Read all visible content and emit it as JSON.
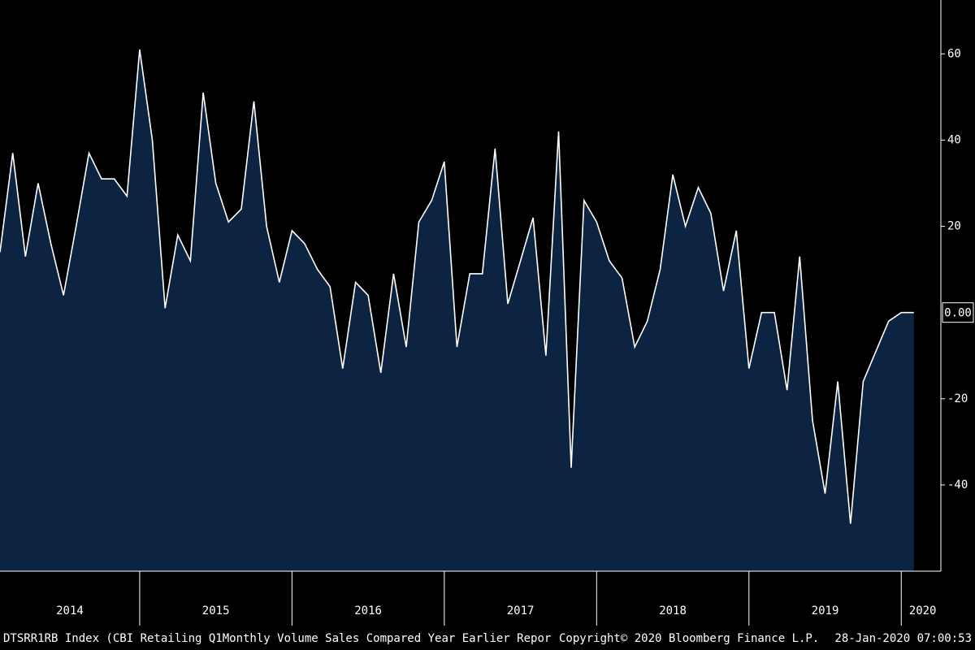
{
  "chart_data": {
    "type": "area",
    "x": [
      2014.083,
      2014.167,
      2014.25,
      2014.333,
      2014.417,
      2014.5,
      2014.583,
      2014.667,
      2014.75,
      2014.833,
      2014.917,
      2015,
      2015.083,
      2015.167,
      2015.25,
      2015.333,
      2015.417,
      2015.5,
      2015.583,
      2015.667,
      2015.75,
      2015.833,
      2015.917,
      2016,
      2016.083,
      2016.167,
      2016.25,
      2016.333,
      2016.417,
      2016.5,
      2016.583,
      2016.667,
      2016.75,
      2016.833,
      2016.917,
      2017,
      2017.083,
      2017.167,
      2017.25,
      2017.333,
      2017.417,
      2017.5,
      2017.583,
      2017.667,
      2017.75,
      2017.833,
      2017.917,
      2018,
      2018.083,
      2018.167,
      2018.25,
      2018.333,
      2018.417,
      2018.5,
      2018.583,
      2018.667,
      2018.75,
      2018.833,
      2018.917,
      2019,
      2019.083,
      2019.167,
      2019.25,
      2019.333,
      2019.417,
      2019.5,
      2019.583,
      2019.667,
      2019.75,
      2019.833,
      2019.917,
      2020,
      2020.083
    ],
    "series": [
      {
        "name": "DTSRR1RB Index",
        "color": "#ffffff",
        "fill": "#0c2341",
        "values": [
          14,
          37,
          13,
          30,
          16,
          4,
          20,
          37,
          31,
          31,
          27,
          61,
          40,
          1,
          18,
          12,
          51,
          30,
          21,
          24,
          49,
          20,
          7,
          19,
          16,
          10,
          6,
          -13,
          7,
          4,
          -14,
          9,
          -8,
          21,
          26,
          35,
          -8,
          9,
          9,
          38,
          2,
          12,
          22,
          -10,
          42,
          -36,
          26,
          21,
          12,
          8,
          -8,
          -2,
          10,
          32,
          20,
          29,
          23,
          5,
          19,
          -13,
          0,
          0,
          -18,
          13,
          -25,
          -42,
          -16,
          -49,
          -16,
          -9,
          -2,
          0,
          0
        ],
        "value_labels": [
          null,
          null,
          null,
          null,
          null,
          null,
          null,
          null,
          null,
          null,
          null,
          null,
          null,
          null,
          null,
          null,
          null,
          null,
          null,
          null,
          null,
          null,
          null,
          null,
          null,
          null,
          null,
          null,
          null,
          null,
          null,
          null,
          null,
          null,
          null,
          null,
          null,
          null,
          null,
          null,
          null,
          null,
          null,
          null,
          null,
          null,
          null,
          null,
          null,
          null,
          null,
          null,
          null,
          null,
          null,
          null,
          null,
          null,
          null,
          null,
          null,
          null,
          null,
          null,
          null,
          null,
          null,
          null,
          null,
          null,
          null,
          null,
          "0.00"
        ]
      }
    ],
    "xlim": [
      2014.083,
      2020.26
    ],
    "xticks": [
      2015,
      2016,
      2017,
      2018,
      2019,
      2020
    ],
    "year_labels": [
      2014,
      2015,
      2016,
      2017,
      2018,
      2019,
      2020
    ],
    "ylim": [
      -60,
      72.5
    ],
    "yticks": [
      -40,
      -20,
      20,
      40,
      60
    ],
    "footer": {
      "left": "DTSRR1RB Index (CBI Retailing Q1Monthly Volume Sales Compared Year Earlier Repor",
      "center": "Copyright© 2020 Bloomberg Finance L.P.",
      "right": "28-Jan-2020 07:00:53"
    }
  }
}
